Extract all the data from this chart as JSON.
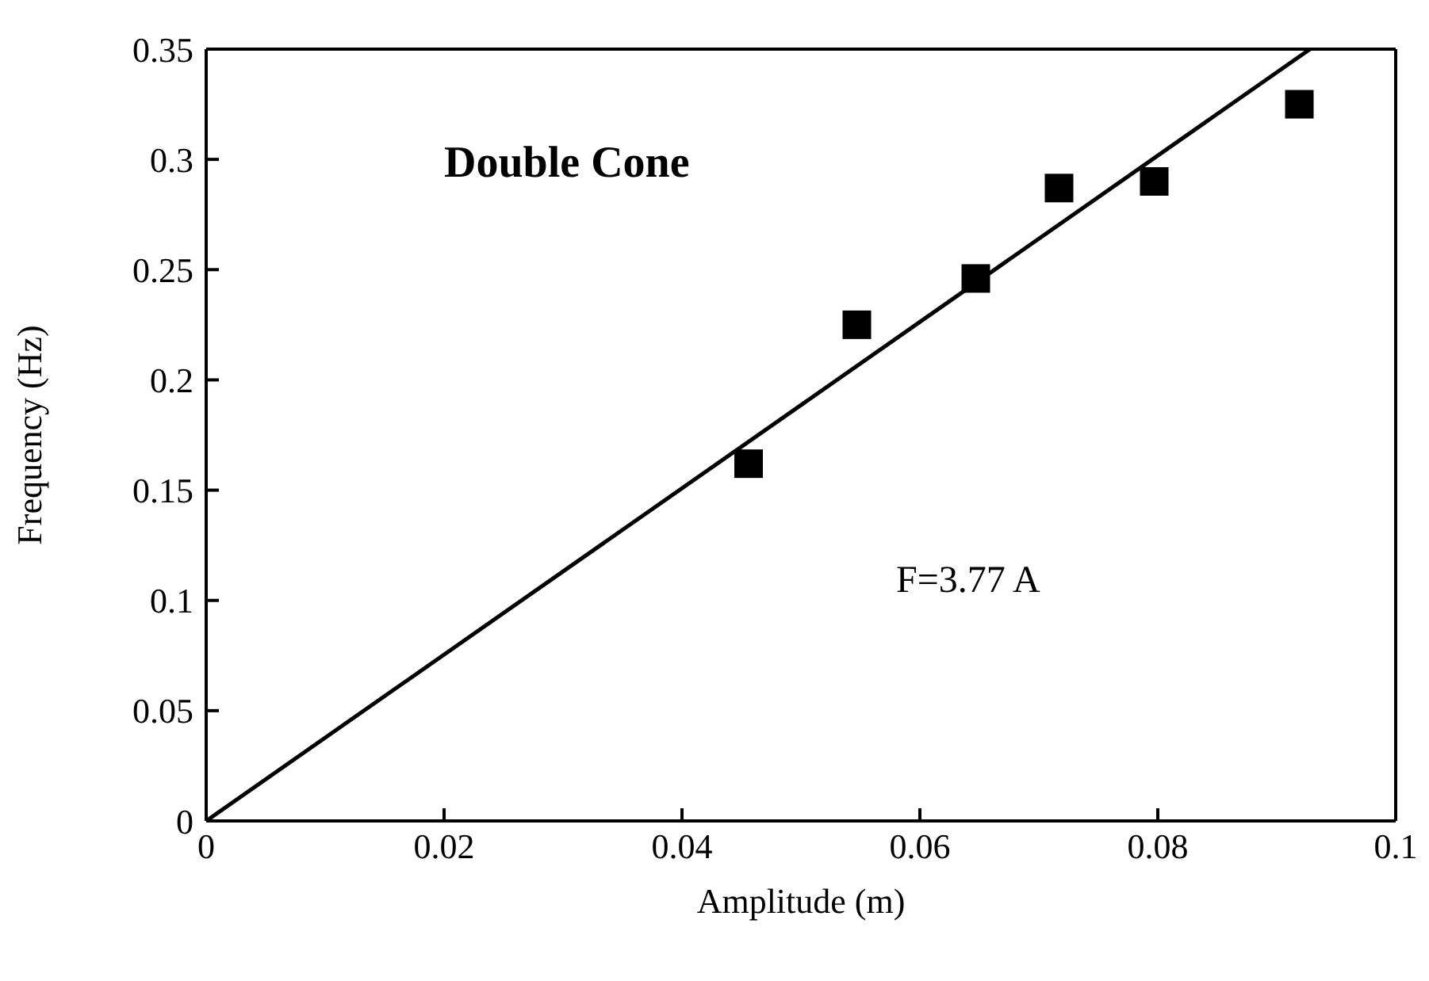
{
  "chart_data": {
    "type": "scatter",
    "title": "Double Cone",
    "xlabel": "Amplitude (m)",
    "ylabel": "Frequency (Hz)",
    "xlim": [
      0,
      0.1
    ],
    "xticks": [
      0,
      0.02,
      0.04,
      0.06,
      0.08,
      0.1
    ],
    "ylim": [
      0,
      0.35
    ],
    "yticks": [
      0,
      0.05,
      0.1,
      0.15,
      0.2,
      0.25,
      0.3,
      0.35
    ],
    "grid": false,
    "legend": false,
    "annotations": [
      "F=3.77 A"
    ],
    "series": [
      {
        "type": "scatter",
        "marker": "square",
        "color": "#000000",
        "x": [
          0.0456,
          0.0547,
          0.0647,
          0.0717,
          0.0797,
          0.0919
        ],
        "values": [
          0.162,
          0.225,
          0.246,
          0.287,
          0.29,
          0.325
        ]
      },
      {
        "type": "line",
        "marker": "none",
        "line_style": "solid",
        "color": "#000000",
        "x": [
          0,
          0.0928
        ],
        "values": [
          0,
          0.35
        ]
      }
    ]
  }
}
